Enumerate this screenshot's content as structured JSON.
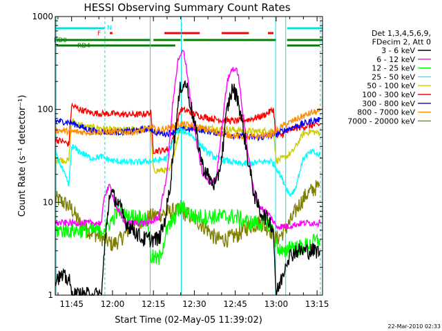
{
  "chart_data": {
    "type": "line",
    "title": "HESSI Observing Summary Count Rates",
    "xlabel": "Start Time (02-May-05 11:39:02)",
    "ylabel": "Count Rate (s⁻¹ detector⁻¹)",
    "xlim_minutes": [
      699,
      797
    ],
    "ylim": [
      1,
      1000
    ],
    "yscale": "log",
    "grid": false,
    "legend_placement": "right",
    "x_ticks": [
      {
        "m": 705,
        "label": "11:45"
      },
      {
        "m": 720,
        "label": "12:00"
      },
      {
        "m": 735,
        "label": "12:15"
      },
      {
        "m": 750,
        "label": "12:30"
      },
      {
        "m": 765,
        "label": "12:45"
      },
      {
        "m": 780,
        "label": "13:00"
      },
      {
        "m": 795,
        "label": "13:15"
      }
    ],
    "y_ticks": [
      {
        "v": 1,
        "label": "1"
      },
      {
        "v": 10,
        "label": "10"
      },
      {
        "v": 100,
        "label": "100"
      },
      {
        "v": 1000,
        "label": "1000"
      }
    ],
    "legend_header": [
      "Det 1,3,4,5,6,9,",
      "FDecim 2, Att 0"
    ],
    "footer": "22-Mar-2010 02:33",
    "flag_labels": {
      "night": "N",
      "flare": "F",
      "rd0": "RD0",
      "rd4": "RD4"
    },
    "flags": {
      "night_color": "#00e0e0",
      "flare_color": "#ff0000",
      "rd_color": "#008000",
      "night": [
        [
          699,
          717
        ],
        [
          784,
          797
        ]
      ],
      "flare": [
        [
          719,
          720
        ],
        [
          739,
          752
        ],
        [
          760,
          770
        ],
        [
          777,
          779
        ]
      ],
      "rd0": [
        [
          699,
          734
        ],
        [
          735,
          745
        ],
        [
          746,
          780
        ],
        [
          784,
          797
        ]
      ],
      "rd4": [
        [
          699,
          734
        ],
        [
          734,
          743
        ],
        [
          784,
          796
        ]
      ]
    },
    "vlines": [
      {
        "m": 699.3,
        "style": "solid"
      },
      {
        "m": 717.2,
        "style": "dashed"
      },
      {
        "m": 733.8,
        "style": "solid"
      },
      {
        "m": 745.2,
        "style": "solid"
      },
      {
        "m": 779.8,
        "style": "solid"
      },
      {
        "m": 783.5,
        "style": "solid"
      },
      {
        "m": 796.2,
        "style": "dashed"
      }
    ],
    "series": [
      {
        "name": "3 - 6 keV",
        "color": "#000000",
        "points": [
          [
            699,
            1.6
          ],
          [
            704,
            1.5
          ],
          [
            705,
            1.0
          ],
          [
            710,
            1.0
          ],
          [
            716,
            1.0
          ],
          [
            717,
            3
          ],
          [
            719,
            13
          ],
          [
            722,
            10
          ],
          [
            725,
            6
          ],
          [
            728,
            5
          ],
          [
            731,
            4
          ],
          [
            734,
            4
          ],
          [
            737,
            4
          ],
          [
            739,
            6
          ],
          [
            741,
            14
          ],
          [
            743,
            60
          ],
          [
            745,
            180
          ],
          [
            747,
            190
          ],
          [
            749,
            100
          ],
          [
            751,
            50
          ],
          [
            753,
            25
          ],
          [
            756,
            17
          ],
          [
            758,
            15
          ],
          [
            760,
            30
          ],
          [
            762,
            100
          ],
          [
            764,
            170
          ],
          [
            766,
            130
          ],
          [
            768,
            60
          ],
          [
            770,
            25
          ],
          [
            772,
            12
          ],
          [
            774,
            8
          ],
          [
            776,
            7
          ],
          [
            778,
            6
          ],
          [
            779,
            5
          ],
          [
            780,
            1
          ],
          [
            782,
            1.5
          ],
          [
            784,
            2.5
          ],
          [
            787,
            3
          ],
          [
            790,
            3
          ],
          [
            793,
            3
          ],
          [
            796,
            3
          ]
        ]
      },
      {
        "name": "6 - 12 keV",
        "color": "#ff00ff",
        "points": [
          [
            699,
            6
          ],
          [
            705,
            6
          ],
          [
            710,
            6
          ],
          [
            716,
            6
          ],
          [
            717,
            12
          ],
          [
            719,
            15
          ],
          [
            722,
            8
          ],
          [
            725,
            6
          ],
          [
            730,
            6
          ],
          [
            734,
            6
          ],
          [
            737,
            7
          ],
          [
            740,
            20
          ],
          [
            742,
            110
          ],
          [
            744,
            330
          ],
          [
            746,
            430
          ],
          [
            747,
            300
          ],
          [
            749,
            100
          ],
          [
            751,
            40
          ],
          [
            753,
            20
          ],
          [
            756,
            16
          ],
          [
            758,
            18
          ],
          [
            760,
            60
          ],
          [
            762,
            200
          ],
          [
            764,
            280
          ],
          [
            766,
            250
          ],
          [
            768,
            80
          ],
          [
            770,
            30
          ],
          [
            772,
            12
          ],
          [
            774,
            9
          ],
          [
            776,
            8
          ],
          [
            778,
            7
          ],
          [
            780,
            5.5
          ],
          [
            784,
            5.5
          ],
          [
            790,
            6
          ],
          [
            796,
            6
          ]
        ]
      },
      {
        "name": "12 - 25 keV",
        "color": "#00ff00",
        "points": [
          [
            699,
            5
          ],
          [
            705,
            5
          ],
          [
            710,
            5
          ],
          [
            716,
            5
          ],
          [
            719,
            6
          ],
          [
            722,
            8
          ],
          [
            725,
            7
          ],
          [
            730,
            7
          ],
          [
            733,
            6
          ],
          [
            734,
            2.6
          ],
          [
            737,
            2.4
          ],
          [
            740,
            5
          ],
          [
            745,
            9
          ],
          [
            750,
            7
          ],
          [
            755,
            7
          ],
          [
            760,
            7
          ],
          [
            765,
            7
          ],
          [
            770,
            6
          ],
          [
            775,
            6
          ],
          [
            778,
            6
          ],
          [
            780,
            3.5
          ],
          [
            783,
            2.7
          ],
          [
            785,
            3.5
          ],
          [
            788,
            3.2
          ],
          [
            792,
            3.5
          ],
          [
            796,
            4
          ]
        ]
      },
      {
        "name": "25 - 50 keV",
        "color": "#00ffff",
        "points": [
          [
            699,
            35
          ],
          [
            701,
            25
          ],
          [
            703,
            18
          ],
          [
            704,
            15
          ],
          [
            705,
            40
          ],
          [
            708,
            35
          ],
          [
            712,
            30
          ],
          [
            716,
            31
          ],
          [
            717,
            30
          ],
          [
            720,
            28
          ],
          [
            725,
            27
          ],
          [
            730,
            27
          ],
          [
            734,
            28
          ],
          [
            736,
            28
          ],
          [
            740,
            30
          ],
          [
            743,
            55
          ],
          [
            745,
            60
          ],
          [
            748,
            55
          ],
          [
            750,
            50
          ],
          [
            754,
            36
          ],
          [
            758,
            30
          ],
          [
            762,
            28
          ],
          [
            766,
            26
          ],
          [
            770,
            26
          ],
          [
            774,
            27
          ],
          [
            778,
            28
          ],
          [
            780,
            24
          ],
          [
            783,
            16
          ],
          [
            785,
            12
          ],
          [
            787,
            14
          ],
          [
            790,
            30
          ],
          [
            793,
            35
          ],
          [
            796,
            32
          ]
        ]
      },
      {
        "name": "50 - 100 keV",
        "color": "#cccc00",
        "points": [
          [
            699,
            29
          ],
          [
            704,
            28
          ],
          [
            705,
            75
          ],
          [
            710,
            65
          ],
          [
            716,
            63
          ],
          [
            720,
            60
          ],
          [
            725,
            60
          ],
          [
            730,
            62
          ],
          [
            734,
            60
          ],
          [
            735,
            22
          ],
          [
            738,
            22
          ],
          [
            741,
            22
          ],
          [
            745,
            66
          ],
          [
            750,
            64
          ],
          [
            755,
            63
          ],
          [
            760,
            62
          ],
          [
            765,
            60
          ],
          [
            770,
            58
          ],
          [
            775,
            58
          ],
          [
            779,
            60
          ],
          [
            780,
            28
          ],
          [
            783,
            30
          ],
          [
            786,
            35
          ],
          [
            790,
            55
          ],
          [
            793,
            58
          ],
          [
            796,
            55
          ]
        ]
      },
      {
        "name": "100 - 300 keV",
        "color": "#ff0000",
        "points": [
          [
            699,
            47
          ],
          [
            702,
            45
          ],
          [
            704,
            42
          ],
          [
            705,
            110
          ],
          [
            708,
            100
          ],
          [
            712,
            92
          ],
          [
            716,
            90
          ],
          [
            720,
            90
          ],
          [
            725,
            88
          ],
          [
            730,
            88
          ],
          [
            734,
            92
          ],
          [
            735,
            36
          ],
          [
            738,
            36
          ],
          [
            741,
            38
          ],
          [
            745,
            100
          ],
          [
            748,
            95
          ],
          [
            752,
            85
          ],
          [
            756,
            80
          ],
          [
            760,
            77
          ],
          [
            765,
            75
          ],
          [
            770,
            78
          ],
          [
            775,
            85
          ],
          [
            779,
            100
          ],
          [
            780,
            50
          ],
          [
            783,
            55
          ],
          [
            786,
            62
          ],
          [
            790,
            65
          ],
          [
            793,
            67
          ],
          [
            796,
            68
          ]
        ]
      },
      {
        "name": "300 - 800 keV",
        "color": "#0000ff",
        "points": [
          [
            699,
            75
          ],
          [
            704,
            73
          ],
          [
            707,
            68
          ],
          [
            710,
            62
          ],
          [
            714,
            58
          ],
          [
            718,
            57
          ],
          [
            722,
            57
          ],
          [
            726,
            58
          ],
          [
            730,
            60
          ],
          [
            734,
            62
          ],
          [
            736,
            56
          ],
          [
            740,
            55
          ],
          [
            745,
            60
          ],
          [
            750,
            62
          ],
          [
            755,
            58
          ],
          [
            760,
            55
          ],
          [
            765,
            52
          ],
          [
            770,
            50
          ],
          [
            775,
            50
          ],
          [
            779,
            53
          ],
          [
            782,
            58
          ],
          [
            786,
            64
          ],
          [
            790,
            70
          ],
          [
            793,
            75
          ],
          [
            796,
            78
          ]
        ]
      },
      {
        "name": "800 - 7000 keV",
        "color": "#ff8c00",
        "points": [
          [
            699,
            60
          ],
          [
            704,
            58
          ],
          [
            708,
            57
          ],
          [
            712,
            57
          ],
          [
            716,
            57
          ],
          [
            720,
            57
          ],
          [
            724,
            57
          ],
          [
            728,
            57
          ],
          [
            732,
            60
          ],
          [
            734,
            65
          ],
          [
            736,
            60
          ],
          [
            740,
            62
          ],
          [
            745,
            70
          ],
          [
            750,
            66
          ],
          [
            755,
            60
          ],
          [
            760,
            55
          ],
          [
            765,
            52
          ],
          [
            770,
            50
          ],
          [
            775,
            52
          ],
          [
            779,
            55
          ],
          [
            782,
            65
          ],
          [
            786,
            75
          ],
          [
            790,
            85
          ],
          [
            793,
            92
          ],
          [
            796,
            95
          ]
        ]
      },
      {
        "name": "7000 - 20000 keV",
        "color": "#808000",
        "points": [
          [
            699,
            11
          ],
          [
            702,
            10
          ],
          [
            705,
            8.5
          ],
          [
            708,
            6
          ],
          [
            711,
            5
          ],
          [
            714,
            4.5
          ],
          [
            717,
            4
          ],
          [
            720,
            3.5
          ],
          [
            723,
            4
          ],
          [
            727,
            5.5
          ],
          [
            731,
            6.5
          ],
          [
            734,
            7
          ],
          [
            738,
            7.5
          ],
          [
            742,
            8
          ],
          [
            745,
            8
          ],
          [
            749,
            7
          ],
          [
            752,
            6
          ],
          [
            755,
            5
          ],
          [
            758,
            4
          ],
          [
            762,
            4
          ],
          [
            766,
            4.5
          ],
          [
            770,
            5.5
          ],
          [
            774,
            6
          ],
          [
            778,
            5
          ],
          [
            780,
            4
          ],
          [
            782,
            4.5
          ],
          [
            785,
            6
          ],
          [
            788,
            9
          ],
          [
            791,
            12
          ],
          [
            794,
            14
          ],
          [
            796,
            15
          ]
        ]
      }
    ]
  }
}
